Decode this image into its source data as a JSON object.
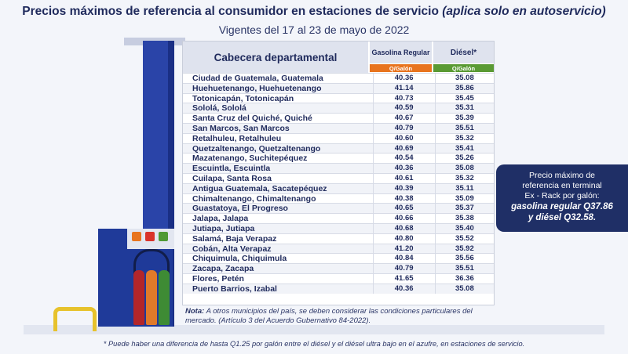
{
  "title_main": "Precios máximos de referencia al consumidor en estaciones de servicio",
  "title_italic": "(aplica solo en autoservicio)",
  "subtitle": "Vigentes del 17 al 23 de mayo de 2022",
  "table": {
    "col_city": "Cabecera departamental",
    "col_gas": "Gasolina Regular",
    "col_diesel": "Diésel*",
    "unit_gas": "Q/Galón",
    "unit_diesel": "Q/Galón",
    "unit_gas_color": "#e8741e",
    "unit_diesel_color": "#5a9a33",
    "rows": [
      {
        "city": "Ciudad de Guatemala, Guatemala",
        "gas": "40.36",
        "diesel": "35.08"
      },
      {
        "city": "Huehuetenango, Huehuetenango",
        "gas": "41.14",
        "diesel": "35.86"
      },
      {
        "city": "Totonicapán, Totonicapán",
        "gas": "40.73",
        "diesel": "35.45"
      },
      {
        "city": "Sololá, Sololá",
        "gas": "40.59",
        "diesel": "35.31"
      },
      {
        "city": "Santa Cruz del Quiché, Quiché",
        "gas": "40.67",
        "diesel": "35.39"
      },
      {
        "city": "San Marcos, San Marcos",
        "gas": "40.79",
        "diesel": "35.51"
      },
      {
        "city": "Retalhuleu, Retalhuleu",
        "gas": "40.60",
        "diesel": "35.32"
      },
      {
        "city": "Quetzaltenango, Quetzaltenango",
        "gas": "40.69",
        "diesel": "35.41"
      },
      {
        "city": "Mazatenango, Suchitepéquez",
        "gas": "40.54",
        "diesel": "35.26"
      },
      {
        "city": "Escuintla, Escuintla",
        "gas": "40.36",
        "diesel": "35.08"
      },
      {
        "city": "Cuilapa, Santa Rosa",
        "gas": "40.61",
        "diesel": "35.32"
      },
      {
        "city": "Antigua Guatemala, Sacatepéquez",
        "gas": "40.39",
        "diesel": "35.11"
      },
      {
        "city": "Chimaltenango, Chimaltenango",
        "gas": "40.38",
        "diesel": "35.09"
      },
      {
        "city": "Guastatoya, El Progreso",
        "gas": "40.65",
        "diesel": "35.37"
      },
      {
        "city": "Jalapa, Jalapa",
        "gas": "40.66",
        "diesel": "35.38"
      },
      {
        "city": "Jutiapa, Jutiapa",
        "gas": "40.68",
        "diesel": "35.40"
      },
      {
        "city": "Salamá, Baja Verapaz",
        "gas": "40.80",
        "diesel": "35.52"
      },
      {
        "city": "Cobán, Alta Verapaz",
        "gas": "41.20",
        "diesel": "35.92"
      },
      {
        "city": "Chiquimula, Chiquimula",
        "gas": "40.84",
        "diesel": "35.56"
      },
      {
        "city": "Zacapa, Zacapa",
        "gas": "40.79",
        "diesel": "35.51"
      },
      {
        "city": "Flores, Petén",
        "gas": "41.65",
        "diesel": "36.36"
      },
      {
        "city": "Puerto Barrios, Izabal",
        "gas": "40.36",
        "diesel": "35.08"
      }
    ]
  },
  "note_label": "Nota:",
  "note_text": "A otros municipios del país, se deben considerar las condiciones particulares del mercado. (Artículo 3 del Acuerdo Gubernativo 84-2022).",
  "callout": {
    "line1": "Precio máximo de",
    "line2": "referencia en terminal",
    "line3": "Ex - Rack por galón:",
    "line4": "gasolina regular Q37.86",
    "line5": "y diésel Q32.58."
  },
  "footnote": "* Puede haber una diferencia de hasta Q1.25 por galón entre el diésel y el diésel ultra bajo en el azufre, en estaciones de servicio.",
  "colors": {
    "primary": "#1f2a5c",
    "pillar": "#2a44a8",
    "light_red": "#d9332b",
    "light_orange": "#e8741e",
    "light_green": "#4f9a34"
  },
  "icons": [
    "fuel-pump-icon",
    "bollard-icon"
  ]
}
